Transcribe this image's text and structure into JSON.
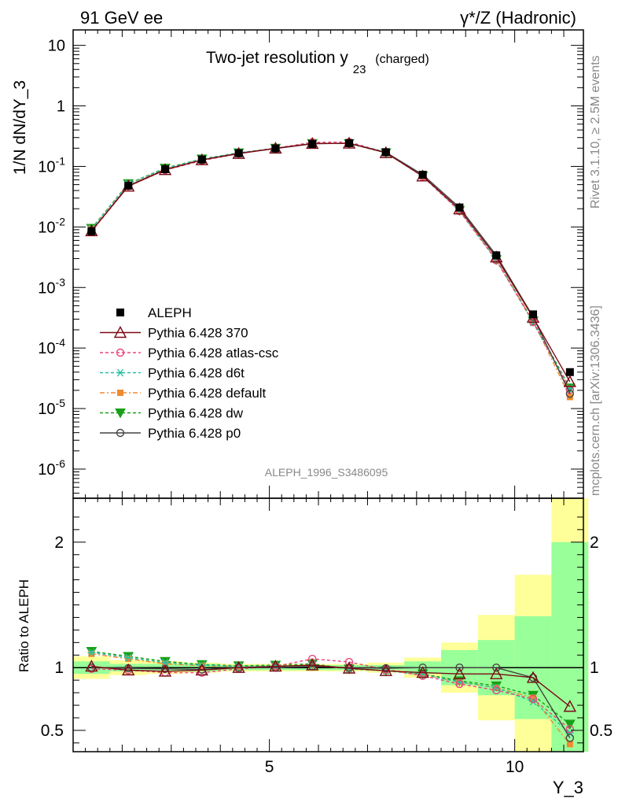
{
  "header": {
    "left": "91 GeV ee",
    "right": "γ*/Z (Hadronic)"
  },
  "side_labels": {
    "top": "Rivet 3.1.10, ≥ 2.5M events",
    "bottom": "mcplots.cern.ch [arXiv:1306.3436]"
  },
  "chart_data": {
    "type": "line",
    "title_main": "Two-jet resolution y",
    "title_sub": "23",
    "title_tag": "(charged)",
    "analysis_id": "ALEPH_1996_S3486095",
    "xlabel": "Y_3",
    "ylabel": "1/N dN/dY_3",
    "ratio_ylabel": "Ratio to ALEPH",
    "xlim": [
      1.0,
      11.4
    ],
    "ylim": [
      3.3e-07,
      18
    ],
    "ylog": true,
    "ratio_ylim": [
      0.33,
      2.35
    ],
    "x_ticks": [
      5,
      10
    ],
    "x_tick_labels": [
      "5",
      "10"
    ],
    "y_tick_labels": [
      "10^-6",
      "10^-5",
      "10^-4",
      "10^-3",
      "10^-2",
      "10^-1",
      "1",
      "10"
    ],
    "ratio_ticks": [
      0.5,
      1,
      2
    ],
    "ratio_tick_labels": [
      "0.5",
      "1",
      "2"
    ],
    "legend_position": "bottom-left",
    "x": [
      1.375,
      2.125,
      2.875,
      3.625,
      4.375,
      5.125,
      5.875,
      6.625,
      7.375,
      8.125,
      8.875,
      9.625,
      10.375,
      11.125
    ],
    "data": {
      "name": "ALEPH",
      "values": [
        0.0085,
        0.048,
        0.09,
        0.13,
        0.165,
        0.198,
        0.235,
        0.242,
        0.172,
        0.073,
        0.021,
        0.0034,
        0.00036,
        4e-05
      ]
    },
    "series": [
      {
        "name": "Pythia 6.428 370",
        "color": "#7a0a14",
        "dash": "",
        "marker": "triangle",
        "values": [
          0.0086,
          0.047,
          0.088,
          0.128,
          0.163,
          0.199,
          0.238,
          0.241,
          0.168,
          0.069,
          0.0197,
          0.00317,
          0.00032,
          2.77e-05
        ]
      },
      {
        "name": "Pythia 6.428 atlas-csc",
        "color": "#e8457a",
        "dash": "4,3",
        "marker": "circle",
        "values": [
          0.0084,
          0.047,
          0.087,
          0.125,
          0.163,
          0.2,
          0.25,
          0.253,
          0.17,
          0.068,
          0.0183,
          0.0028,
          0.000268,
          2.04e-05
        ]
      },
      {
        "name": "Pythia 6.428 d6t",
        "color": "#28c0a0",
        "dash": "4,3",
        "marker": "asterisk",
        "values": [
          0.0094,
          0.052,
          0.093,
          0.133,
          0.167,
          0.2,
          0.24,
          0.24,
          0.168,
          0.069,
          0.0186,
          0.00286,
          0.000263,
          2.12e-05
        ]
      },
      {
        "name": "Pythia 6.428 default",
        "color": "#f08a30",
        "dash": "6,3,2,3",
        "marker": "square",
        "values": [
          0.0093,
          0.051,
          0.092,
          0.132,
          0.166,
          0.2,
          0.24,
          0.24,
          0.168,
          0.069,
          0.0186,
          0.0029,
          0.00028,
          1.55e-05
        ]
      },
      {
        "name": "Pythia 6.428 dw",
        "color": "#18a018",
        "dash": "4,3",
        "marker": "triangle-down",
        "values": [
          0.0095,
          0.052,
          0.094,
          0.133,
          0.168,
          0.2,
          0.24,
          0.24,
          0.168,
          0.07,
          0.0188,
          0.0029,
          0.00028,
          2.2e-05
        ]
      },
      {
        "name": "Pythia 6.428 p0",
        "color": "#444444",
        "dash": "",
        "marker": "circle",
        "values": [
          0.0086,
          0.048,
          0.089,
          0.128,
          0.165,
          0.197,
          0.237,
          0.242,
          0.171,
          0.073,
          0.021,
          0.0034,
          0.00033,
          1.76e-05
        ]
      }
    ],
    "ratio_band_inner": [
      0.05,
      0.03,
      0.03,
      0.03,
      0.02,
      0.02,
      0.02,
      0.02,
      0.02,
      0.05,
      0.14,
      0.22,
      0.41,
      1.0
    ],
    "ratio_band_outer": [
      0.09,
      0.06,
      0.05,
      0.04,
      0.03,
      0.03,
      0.03,
      0.03,
      0.04,
      0.08,
      0.2,
      0.42,
      0.74,
      1.4
    ],
    "ratio_series": [
      [
        1.01,
        0.98,
        0.97,
        0.98,
        1.0,
        1.01,
        1.02,
        0.995,
        0.975,
        0.96,
        0.95,
        0.95,
        0.92,
        0.69
      ],
      [
        0.99,
        0.98,
        0.96,
        0.96,
        0.99,
        1.01,
        1.07,
        1.045,
        0.985,
        0.935,
        0.87,
        0.82,
        0.75,
        0.51
      ],
      [
        1.12,
        1.08,
        1.04,
        1.02,
        1.01,
        1.01,
        1.02,
        0.99,
        0.975,
        0.945,
        0.885,
        0.84,
        0.73,
        0.48
      ],
      [
        1.11,
        1.07,
        1.03,
        1.015,
        1.01,
        1.01,
        1.02,
        0.99,
        0.975,
        0.945,
        0.885,
        0.84,
        0.76,
        0.39
      ],
      [
        1.13,
        1.09,
        1.05,
        1.025,
        1.015,
        1.02,
        1.03,
        0.99,
        0.975,
        0.95,
        0.895,
        0.855,
        0.78,
        0.55
      ],
      [
        1.0,
        0.995,
        0.99,
        0.985,
        1.0,
        1.0,
        1.01,
        1.0,
        0.995,
        1.0,
        1.0,
        1.0,
        0.92,
        0.44
      ]
    ]
  }
}
